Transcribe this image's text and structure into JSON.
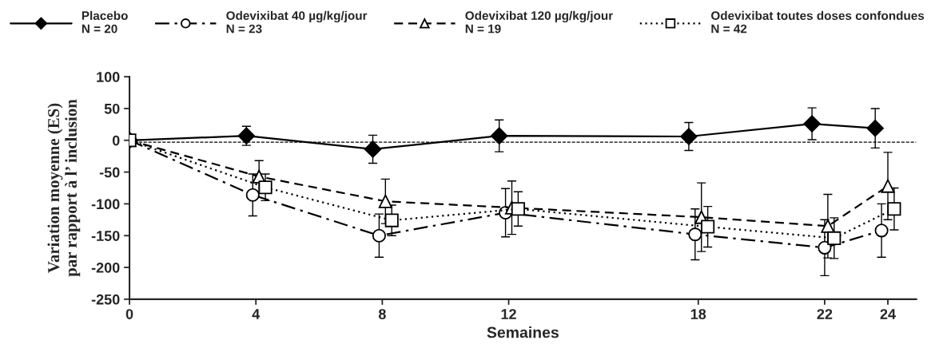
{
  "chart_data": {
    "type": "line",
    "xlabel": "Semaines",
    "ylabel": "Variation moyenne (ES)\npar rapport à l’ inclusion",
    "xlim": [
      0,
      24.9
    ],
    "xticks": [
      0,
      4,
      8,
      12,
      18,
      22,
      24
    ],
    "ylim": [
      -250,
      100
    ],
    "yticks": [
      -250,
      -200,
      -150,
      -100,
      -50,
      0,
      50,
      100
    ],
    "grid": false,
    "legend": "top",
    "ref_lines": [
      {
        "axis": "y",
        "value": -3,
        "color": "#000000",
        "line_style": "dashed"
      }
    ],
    "series": [
      {
        "name": "Placebo\nN = 20",
        "color": "#000000",
        "marker": "diamond",
        "line_style": "solid",
        "x": [
          0,
          3.7,
          7.7,
          11.7,
          17.7,
          21.6,
          23.6
        ],
        "values": [
          0,
          7,
          -14,
          7,
          6,
          26,
          19
        ],
        "errors": [
          null,
          15,
          22,
          25,
          22,
          25,
          31
        ]
      },
      {
        "name": "Odevixibat 40 µg/kg/jour\nN = 23",
        "color": "#000000",
        "marker": "circle",
        "line_style": "dashdot",
        "x": [
          0,
          3.9,
          7.9,
          11.9,
          17.9,
          22.0,
          23.8
        ],
        "values": [
          0,
          -86,
          -150,
          -114,
          -148,
          -169,
          -142
        ],
        "errors": [
          null,
          33,
          34,
          38,
          40,
          44,
          42
        ]
      },
      {
        "name": "Odevixibat 120 µg/kg/jour\nN = 19",
        "color": "#000000",
        "marker": "triangle",
        "line_style": "dashed",
        "x": [
          0,
          4.1,
          8.1,
          12.1,
          18.1,
          22.1,
          24.0
        ],
        "values": [
          0,
          -57,
          -96,
          -106,
          -121,
          -135,
          -72
        ],
        "errors": [
          null,
          25,
          35,
          42,
          54,
          50,
          53
        ]
      },
      {
        "name": "Odevixibat toutes doses confondues\nN = 42",
        "color": "#000000",
        "marker": "square",
        "line_style": "dotted",
        "x": [
          0,
          4.3,
          8.3,
          12.3,
          18.3,
          22.3,
          24.2
        ],
        "values": [
          0,
          -74,
          -126,
          -108,
          -136,
          -154,
          -108
        ],
        "errors": [
          null,
          21,
          24,
          27,
          32,
          32,
          33
        ]
      }
    ]
  }
}
